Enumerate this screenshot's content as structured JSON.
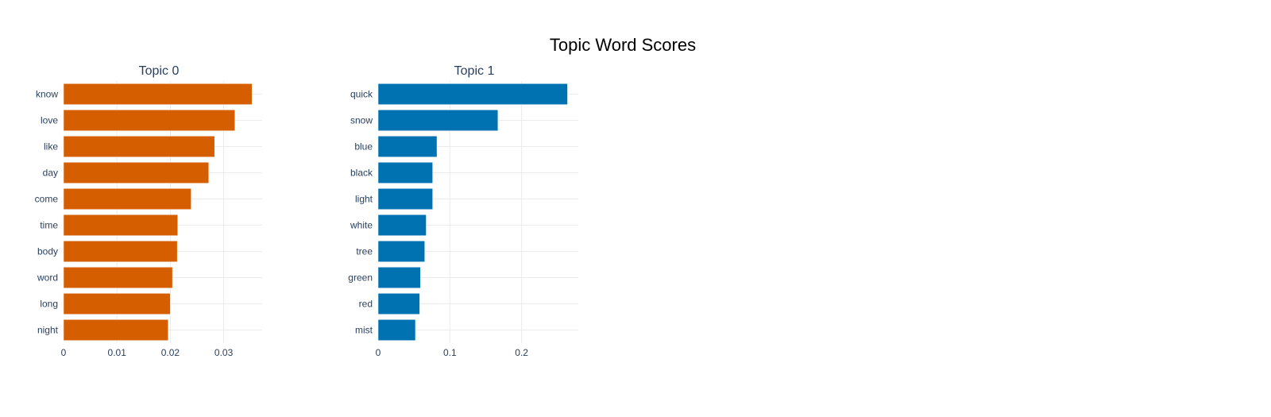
{
  "title": "Topic Word Scores",
  "chart_data": [
    {
      "type": "bar",
      "orientation": "horizontal",
      "title": "Topic 0",
      "color": "#D55E00",
      "categories": [
        "know",
        "love",
        "like",
        "day",
        "come",
        "time",
        "body",
        "word",
        "long",
        "night"
      ],
      "values": [
        0.0353,
        0.0321,
        0.0283,
        0.0272,
        0.0239,
        0.0214,
        0.0213,
        0.0204,
        0.02,
        0.0196
      ],
      "xlim": [
        0,
        0.0372
      ],
      "xticks": [
        0,
        0.01,
        0.02,
        0.03
      ],
      "xtick_labels": [
        "0",
        "0.01",
        "0.02",
        "0.03"
      ],
      "xlabel": "",
      "ylabel": "",
      "grid": true
    },
    {
      "type": "bar",
      "orientation": "horizontal",
      "title": "Topic 1",
      "color": "#0072B2",
      "categories": [
        "quick",
        "snow",
        "blue",
        "black",
        "light",
        "white",
        "tree",
        "green",
        "red",
        "mist"
      ],
      "values": [
        0.264,
        0.167,
        0.082,
        0.076,
        0.076,
        0.067,
        0.065,
        0.059,
        0.058,
        0.052
      ],
      "xlim": [
        0,
        0.279
      ],
      "xticks": [
        0,
        0.1,
        0.2
      ],
      "xtick_labels": [
        "0",
        "0.1",
        "0.2"
      ],
      "xlabel": "",
      "ylabel": "",
      "grid": true
    }
  ]
}
